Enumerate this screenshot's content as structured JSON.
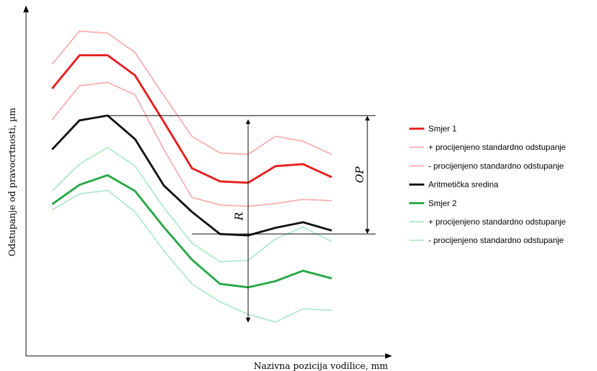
{
  "chart_data": {
    "type": "line",
    "title": "",
    "xlabel": "Nazivna pozicija vodilice, mm",
    "ylabel": "Odstupanje od pravocrtnosti, µm",
    "grid": false,
    "legend_position": "right",
    "x": [
      1,
      2,
      3,
      4,
      5,
      6,
      7,
      8,
      9,
      10,
      11
    ],
    "ylim": [
      0,
      100
    ],
    "series": [
      {
        "name": "Smjer 1",
        "color": "#e81c1c",
        "weight": "bold",
        "values": [
          77.2,
          86.8,
          86.8,
          81.0,
          67.6,
          54.2,
          50.4,
          50.0,
          54.8,
          55.4,
          51.6
        ]
      },
      {
        "name": "+ procijenjeno standardno odstupanje",
        "color": "#f7b4b4",
        "weight": "light",
        "values": [
          84.2,
          93.8,
          93.2,
          87.6,
          75.2,
          63.4,
          58.6,
          58.2,
          63.4,
          62.0,
          58.2
        ]
      },
      {
        "name": "- procijenjeno standardno odstupanje",
        "color": "#f7b4b4",
        "weight": "light",
        "values": [
          68.2,
          78.0,
          79.0,
          75.4,
          59.6,
          45.8,
          43.6,
          43.2,
          44.0,
          45.2,
          44.8
        ]
      },
      {
        "name": "Aritmetička sredina",
        "color": "#111111",
        "weight": "bold",
        "values": [
          59.6,
          68.0,
          69.4,
          62.6,
          49.2,
          41.6,
          35.2,
          34.8,
          37.0,
          38.6,
          36.2
        ]
      },
      {
        "name": "Smjer 2",
        "color": "#25a745",
        "weight": "bold",
        "values": [
          43.8,
          49.4,
          52.2,
          47.6,
          37.2,
          27.8,
          20.8,
          19.8,
          21.6,
          24.6,
          22.4
        ]
      },
      {
        "name": "+ procijenjeno standardno odstupanje",
        "color": "#b4eacb",
        "weight": "light",
        "values": [
          47.6,
          55.4,
          60.2,
          54.8,
          42.8,
          32.6,
          27.2,
          27.6,
          33.8,
          37.2,
          33.0
        ]
      },
      {
        "name": "- procijenjeno standardno odstupanje",
        "color": "#b4eacb",
        "weight": "light",
        "values": [
          42.2,
          46.8,
          47.8,
          41.6,
          30.4,
          20.8,
          15.6,
          12.0,
          9.8,
          13.6,
          13.2
        ]
      }
    ],
    "annotations": [
      {
        "label": "OP",
        "type": "range-bracket",
        "from": 69.4,
        "to": 35.2,
        "side": "right"
      },
      {
        "label": "R",
        "type": "vertical-arrow",
        "at_x": 8,
        "from": 68.2,
        "to": 9.8
      }
    ]
  }
}
